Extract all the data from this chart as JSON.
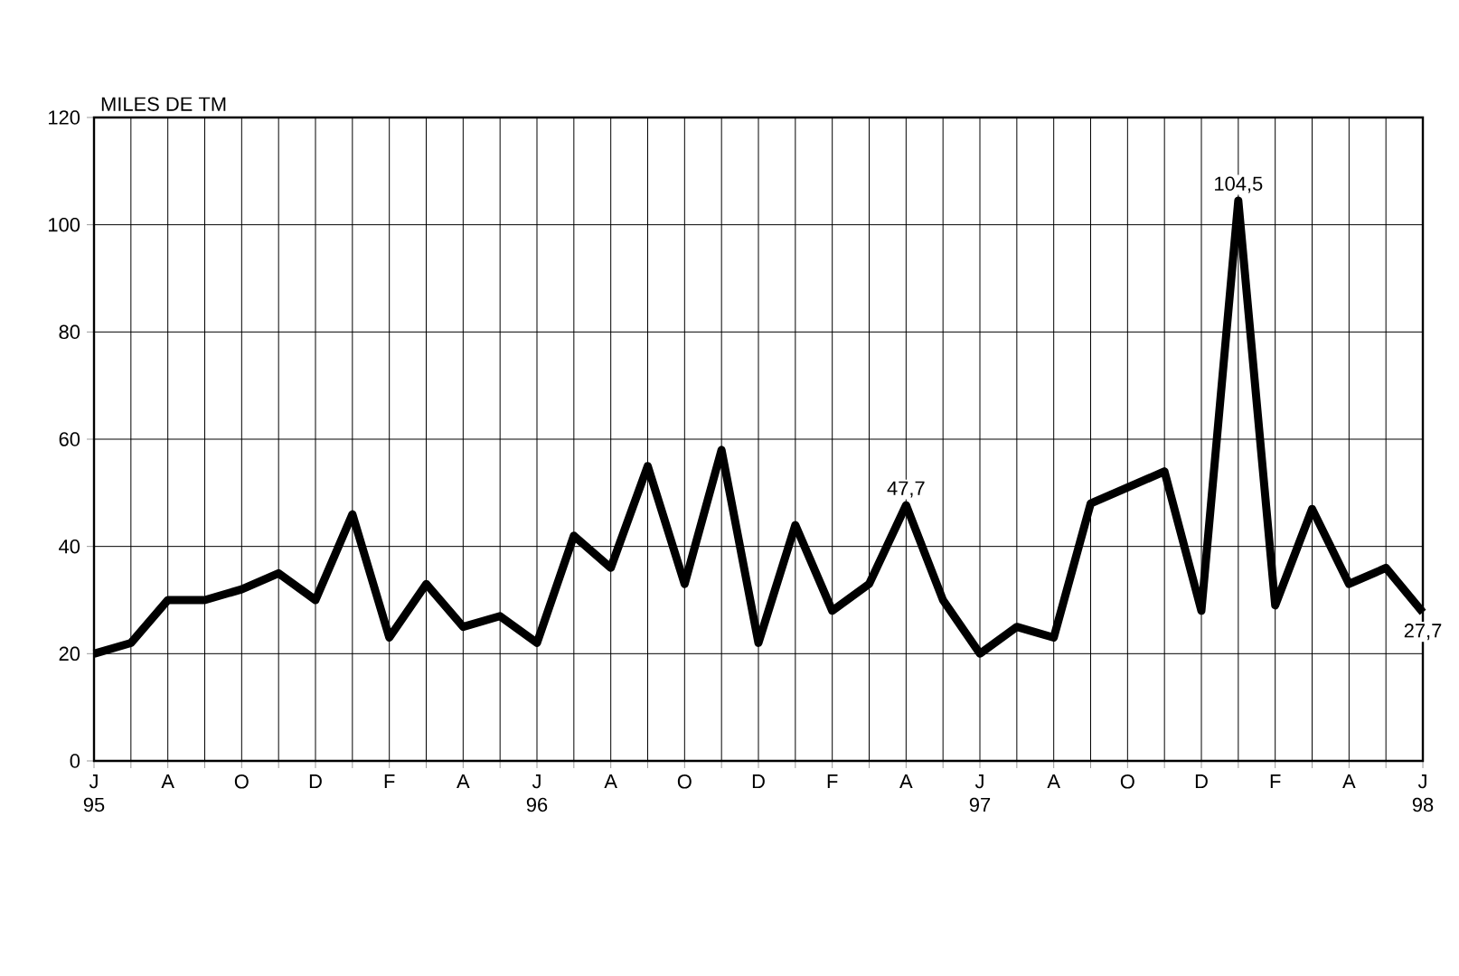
{
  "chart_data": {
    "type": "line",
    "ylabel": "MILES DE TM",
    "categories": [
      "J 95",
      null,
      "A",
      null,
      "O",
      null,
      "D",
      null,
      "F",
      null,
      "A",
      null,
      "J 96",
      null,
      "A",
      null,
      "O",
      null,
      "D",
      null,
      "F",
      null,
      "A",
      null,
      "J 97",
      null,
      "A",
      null,
      "O",
      null,
      "D",
      null,
      "F",
      null,
      "A",
      null,
      "J 98"
    ],
    "series": [
      {
        "color": "#000000",
        "values": [
          20,
          22,
          30,
          30,
          32,
          35,
          30,
          46,
          23,
          33,
          25,
          27,
          22,
          42,
          36,
          55,
          33,
          58,
          22,
          44,
          28,
          33,
          47.7,
          30,
          20,
          25,
          23,
          48,
          51,
          54,
          28,
          104.5,
          29,
          47,
          33,
          36,
          27.7
        ],
        "value_labels": [
          null,
          null,
          null,
          null,
          null,
          null,
          null,
          null,
          null,
          null,
          null,
          null,
          null,
          null,
          null,
          null,
          null,
          null,
          null,
          null,
          null,
          null,
          "47,7",
          null,
          null,
          null,
          null,
          null,
          null,
          null,
          null,
          "104,5",
          null,
          null,
          null,
          null,
          "27,7"
        ]
      }
    ],
    "ylim": [
      0,
      120
    ],
    "yticks": [
      0,
      20,
      40,
      60,
      80,
      100,
      120
    ],
    "grid": true,
    "legend": false,
    "marker": "none",
    "line_style": "solid"
  }
}
